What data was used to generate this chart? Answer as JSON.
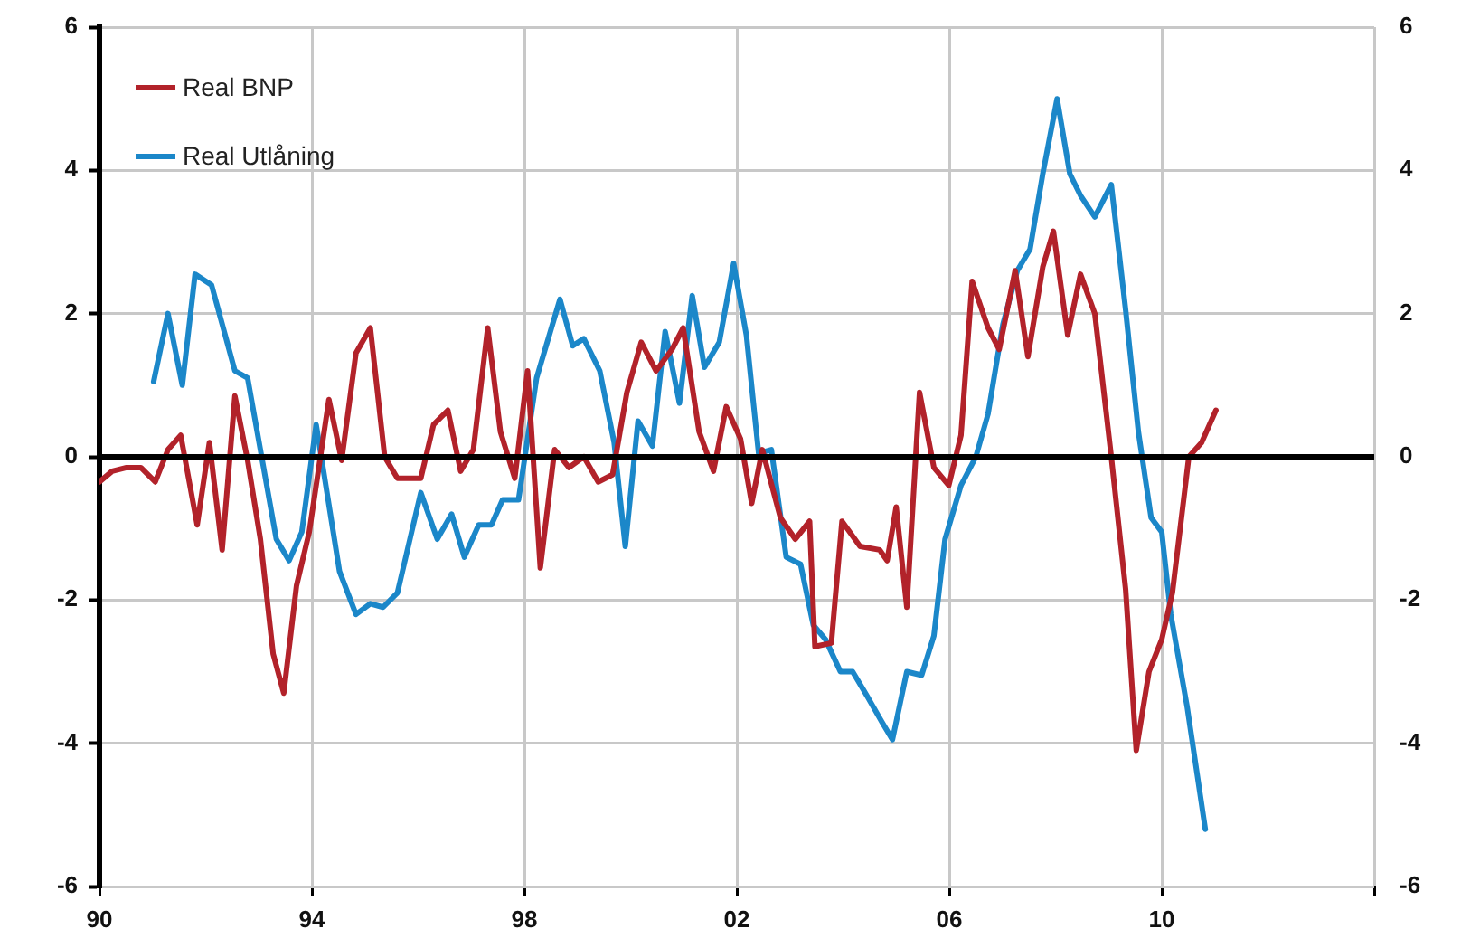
{
  "chart_data": {
    "type": "line",
    "legend": "top left",
    "grid": true,
    "marker": "none",
    "line_style": "solid",
    "xlim": [
      1990,
      2014
    ],
    "xticks": [
      {
        "value": 1990,
        "label": "90"
      },
      {
        "value": 1994,
        "label": "94"
      },
      {
        "value": 1998,
        "label": "98"
      },
      {
        "value": 2002,
        "label": "02"
      },
      {
        "value": 2006,
        "label": "06"
      },
      {
        "value": 2010,
        "label": "10"
      },
      {
        "value": 2014,
        "label": null
      }
    ],
    "ylim": [
      -6,
      6
    ],
    "yticks": [
      -6,
      -4,
      -2,
      0,
      2,
      4,
      6
    ],
    "y2lim": [
      -6,
      6
    ],
    "y2ticks": [
      -6,
      -4,
      -2,
      0,
      2,
      4,
      6
    ],
    "ref_lines": [
      {
        "axis": "y",
        "value": 0,
        "label": null,
        "color": "#000000"
      }
    ],
    "series": [
      {
        "name": "Real BNP",
        "color": "#b2222a",
        "x": [
          1990.0,
          1990.24,
          1990.51,
          1990.78,
          1991.05,
          1991.29,
          1991.53,
          1991.84,
          1992.07,
          1992.31,
          1992.55,
          1992.79,
          1993.03,
          1993.27,
          1993.47,
          1993.71,
          1993.95,
          1994.32,
          1994.56,
          1994.83,
          1995.1,
          1995.37,
          1995.61,
          1996.05,
          1996.29,
          1996.56,
          1996.8,
          1997.04,
          1997.31,
          1997.55,
          1997.82,
          1998.06,
          1998.3,
          1998.57,
          1998.84,
          1999.12,
          1999.39,
          1999.66,
          1999.93,
          2000.2,
          2000.48,
          2000.78,
          2000.99,
          2001.29,
          2001.56,
          2001.8,
          2002.07,
          2002.28,
          2002.48,
          2002.82,
          2003.1,
          2003.37,
          2003.47,
          2003.78,
          2003.98,
          2004.32,
          2004.69,
          2004.83,
          2005.0,
          2005.2,
          2005.44,
          2005.71,
          2005.99,
          2006.22,
          2006.43,
          2006.73,
          2006.94,
          2007.24,
          2007.48,
          2007.76,
          2007.96,
          2008.23,
          2008.47,
          2008.74,
          2009.05,
          2009.32,
          2009.52,
          2009.76,
          2010.0,
          2010.2,
          2010.51,
          2010.75,
          2011.02
        ],
        "values": [
          -0.35,
          -0.2,
          -0.15,
          -0.15,
          -0.35,
          0.1,
          0.3,
          -0.95,
          0.2,
          -1.3,
          0.85,
          -0.05,
          -1.15,
          -2.75,
          -3.3,
          -1.8,
          -1.05,
          0.8,
          -0.05,
          1.45,
          1.8,
          0,
          -0.3,
          -0.3,
          0.45,
          0.65,
          -0.2,
          0.1,
          1.8,
          0.35,
          -0.3,
          1.2,
          -1.55,
          0.1,
          -0.15,
          0,
          -0.35,
          -0.25,
          0.9,
          1.6,
          1.2,
          1.5,
          1.8,
          0.35,
          -0.2,
          0.7,
          0.25,
          -0.65,
          0.1,
          -0.85,
          -1.15,
          -0.9,
          -2.65,
          -2.6,
          -0.9,
          -1.25,
          -1.3,
          -1.45,
          -0.7,
          -2.1,
          0.9,
          -0.15,
          -0.4,
          0.3,
          2.45,
          1.8,
          1.5,
          2.6,
          1.4,
          2.65,
          3.15,
          1.7,
          2.55,
          2.0,
          0,
          -1.85,
          -4.1,
          -3.0,
          -2.55,
          -1.9,
          0,
          0.2,
          0.65
        ]
      },
      {
        "name": "Real Utlåning",
        "color": "#1b87c9",
        "x": [
          1991.02,
          1991.29,
          1991.56,
          1991.8,
          1992.11,
          1992.55,
          1992.79,
          1993.33,
          1993.57,
          1993.81,
          1994.08,
          1994.52,
          1994.83,
          1995.1,
          1995.34,
          1995.61,
          1996.05,
          1996.36,
          1996.63,
          1996.87,
          1997.14,
          1997.38,
          1997.59,
          1997.89,
          1998.23,
          1998.67,
          1998.91,
          1999.12,
          1999.42,
          1999.69,
          1999.9,
          2000.14,
          2000.41,
          2000.65,
          2000.92,
          2001.16,
          2001.39,
          2001.67,
          2001.94,
          2002.18,
          2002.41,
          2002.65,
          2002.93,
          2003.2,
          2003.44,
          2003.67,
          2003.95,
          2004.18,
          2004.46,
          2004.73,
          2004.93,
          2005.2,
          2005.48,
          2005.71,
          2005.92,
          2006.22,
          2006.5,
          2006.73,
          2007.01,
          2007.28,
          2007.52,
          2007.76,
          2008.03,
          2008.27,
          2008.47,
          2008.74,
          2009.05,
          2009.32,
          2009.56,
          2009.8,
          2010.0,
          2010.17,
          2010.48,
          2010.82
        ],
        "values": [
          1.05,
          2.0,
          1.0,
          2.55,
          2.4,
          1.2,
          1.1,
          -1.15,
          -1.45,
          -1.05,
          0.45,
          -1.6,
          -2.2,
          -2.05,
          -2.1,
          -1.9,
          -0.5,
          -1.15,
          -0.8,
          -1.4,
          -0.95,
          -0.95,
          -0.6,
          -0.6,
          1.1,
          2.2,
          1.55,
          1.65,
          1.2,
          0.2,
          -1.25,
          0.5,
          0.15,
          1.75,
          0.75,
          2.25,
          1.25,
          1.6,
          2.7,
          1.7,
          0.05,
          0.1,
          -1.4,
          -1.5,
          -2.35,
          -2.55,
          -3.0,
          -3.0,
          -3.35,
          -3.7,
          -3.95,
          -3.0,
          -3.05,
          -2.5,
          -1.15,
          -0.4,
          0,
          0.6,
          1.85,
          2.6,
          2.9,
          3.95,
          5.0,
          3.95,
          3.65,
          3.35,
          3.8,
          2.05,
          0.35,
          -0.85,
          -1.05,
          -2.2,
          -3.5,
          -5.2
        ]
      }
    ]
  }
}
